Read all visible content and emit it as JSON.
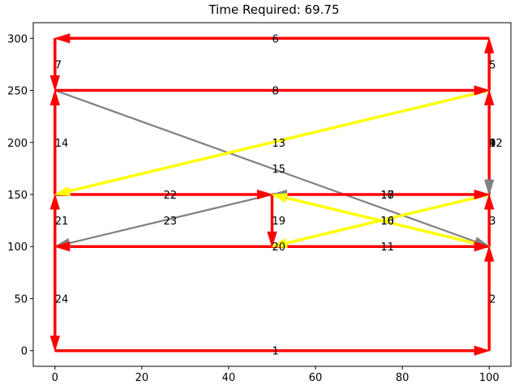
{
  "chart_data": {
    "type": "line",
    "title": "Time Required: 69.75",
    "xlabel": "",
    "ylabel": "",
    "xlim": [
      -5,
      105
    ],
    "ylim": [
      -15,
      315
    ],
    "xticks": [
      0,
      20,
      40,
      60,
      80,
      100
    ],
    "yticks": [
      0,
      50,
      100,
      150,
      200,
      250,
      300
    ],
    "xtick_labels": [
      "0",
      "20",
      "40",
      "60",
      "80",
      "100"
    ],
    "ytick_labels": [
      "0",
      "50",
      "100",
      "150",
      "200",
      "250",
      "300"
    ],
    "grid": false,
    "colors": {
      "red": "#ff0000",
      "yellow": "#ffff00",
      "gray": "#808080"
    },
    "segments": [
      {
        "label": "1",
        "from": [
          0,
          0
        ],
        "to": [
          100,
          0
        ],
        "color": "red"
      },
      {
        "label": "2",
        "from": [
          100,
          0
        ],
        "to": [
          100,
          100
        ],
        "color": "red"
      },
      {
        "label": "3",
        "from": [
          100,
          100
        ],
        "to": [
          100,
          150
        ],
        "color": "red"
      },
      {
        "label": "4",
        "from": [
          100,
          150
        ],
        "to": [
          100,
          250
        ],
        "color": "red"
      },
      {
        "label": "5",
        "from": [
          100,
          250
        ],
        "to": [
          100,
          300
        ],
        "color": "red"
      },
      {
        "label": "6",
        "from": [
          100,
          300
        ],
        "to": [
          0,
          300
        ],
        "color": "red"
      },
      {
        "label": "7",
        "from": [
          0,
          300
        ],
        "to": [
          0,
          250
        ],
        "color": "red"
      },
      {
        "label": "8",
        "from": [
          0,
          250
        ],
        "to": [
          100,
          250
        ],
        "color": "red"
      },
      {
        "label": "9",
        "from": [
          100,
          250
        ],
        "to": [
          100,
          150
        ],
        "color": "gray"
      },
      {
        "label": "10",
        "from": [
          100,
          150
        ],
        "to": [
          50,
          100
        ],
        "color": "yellow"
      },
      {
        "label": "11",
        "from": [
          50,
          100
        ],
        "to": [
          100,
          100
        ],
        "color": "red"
      },
      {
        "label": "12",
        "from": [
          100,
          150
        ],
        "to": [
          100,
          250
        ],
        "color": "gray"
      },
      {
        "label": "13",
        "from": [
          100,
          250
        ],
        "to": [
          0,
          150
        ],
        "color": "yellow"
      },
      {
        "label": "14",
        "from": [
          0,
          150
        ],
        "to": [
          0,
          250
        ],
        "color": "red"
      },
      {
        "label": "15",
        "from": [
          0,
          250
        ],
        "to": [
          100,
          100
        ],
        "color": "gray"
      },
      {
        "label": "16",
        "from": [
          100,
          100
        ],
        "to": [
          50,
          150
        ],
        "color": "yellow"
      },
      {
        "label": "17",
        "from": [
          50,
          150
        ],
        "to": [
          100,
          150
        ],
        "color": "red"
      },
      {
        "label": "18",
        "from": [
          100,
          150
        ],
        "to": [
          50,
          150
        ],
        "color": "gray"
      },
      {
        "label": "19",
        "from": [
          50,
          150
        ],
        "to": [
          50,
          100
        ],
        "color": "red"
      },
      {
        "label": "20",
        "from": [
          100,
          100
        ],
        "to": [
          0,
          100
        ],
        "color": "red"
      },
      {
        "label": "21",
        "from": [
          0,
          100
        ],
        "to": [
          0,
          150
        ],
        "color": "red"
      },
      {
        "label": "22",
        "from": [
          0,
          150
        ],
        "to": [
          50,
          150
        ],
        "color": "red"
      },
      {
        "label": "23",
        "from": [
          50,
          150
        ],
        "to": [
          0,
          100
        ],
        "color": "gray"
      },
      {
        "label": "24",
        "from": [
          0,
          100
        ],
        "to": [
          0,
          0
        ],
        "color": "red"
      }
    ]
  }
}
